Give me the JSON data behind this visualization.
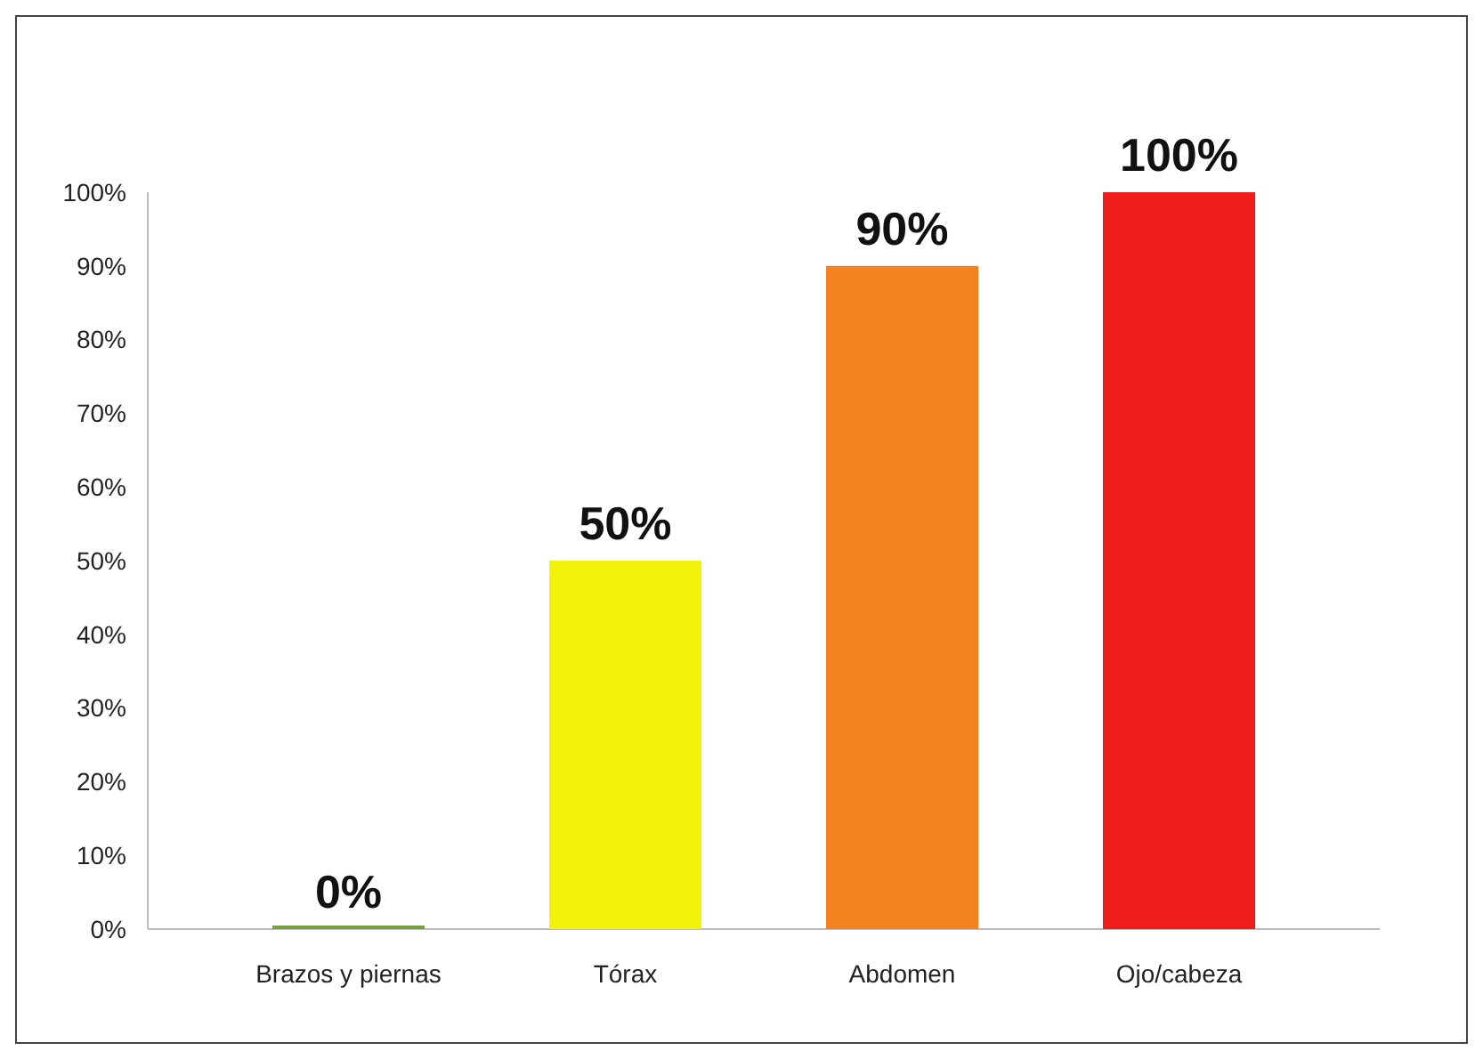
{
  "chart_data": {
    "type": "bar",
    "categories": [
      "Brazos y piernas",
      "Tórax",
      "Abdomen",
      "Ojo/cabeza"
    ],
    "values": [
      0,
      50,
      90,
      100
    ],
    "colors": [
      "#77a043",
      "#f2f20a",
      "#f58220",
      "#ef1c1c"
    ],
    "value_labels": [
      "0%",
      "50%",
      "90%",
      "100%"
    ],
    "ylim": [
      0,
      100
    ],
    "yticks": [
      {
        "value": 0,
        "label": "0%"
      },
      {
        "value": 10,
        "label": "10%"
      },
      {
        "value": 20,
        "label": "20%"
      },
      {
        "value": 30,
        "label": "30%"
      },
      {
        "value": 40,
        "label": "40%"
      },
      {
        "value": 50,
        "label": "50%"
      },
      {
        "value": 60,
        "label": "60%"
      },
      {
        "value": 70,
        "label": "70%"
      },
      {
        "value": 80,
        "label": "80%"
      },
      {
        "value": 90,
        "label": "90%"
      },
      {
        "value": 100,
        "label": "100%"
      }
    ],
    "grid": false
  }
}
